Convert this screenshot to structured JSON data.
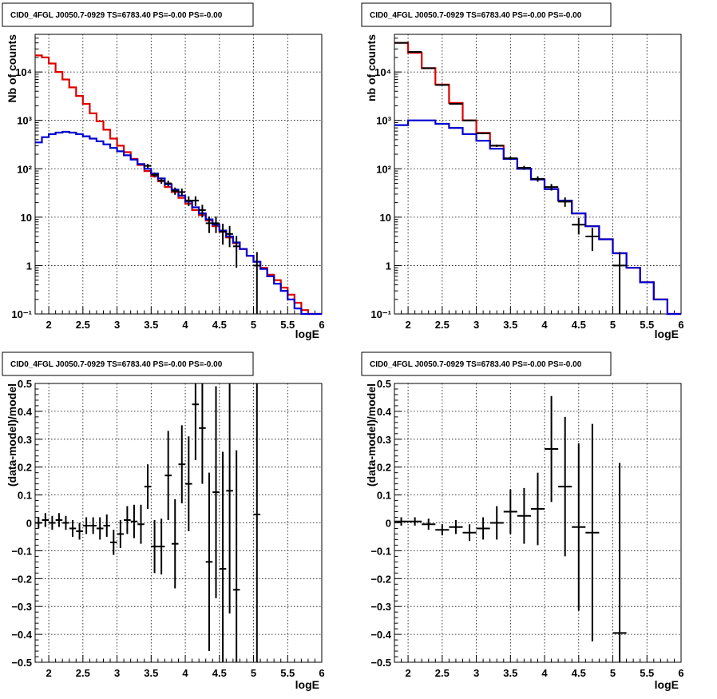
{
  "colors": {
    "model_total": "#e00000",
    "model_bkg": "#0000d0",
    "data": "#000000"
  },
  "chart_data": [
    {
      "type": "line",
      "title": "CID0_4FGL J0050.7-0929 TS=6783.40 PS=-0.00 PS=-0.00",
      "xlabel": "logE",
      "ylabel": "Nb of counts",
      "xlim": [
        1.8,
        6.0
      ],
      "ylim": [
        0.1,
        60000
      ],
      "log_y": true,
      "grid": true,
      "xticks": [
        "2",
        "2.5",
        "3",
        "3.5",
        "4",
        "4.5",
        "5",
        "5.5",
        "6"
      ],
      "yticks": [
        "10⁻¹",
        "1",
        "10",
        "10²",
        "10³",
        "10⁴"
      ],
      "bin_edges": [
        1.8,
        1.9,
        2.0,
        2.1,
        2.2,
        2.3,
        2.4,
        2.5,
        2.6,
        2.7,
        2.8,
        2.9,
        3.0,
        3.1,
        3.2,
        3.3,
        3.4,
        3.5,
        3.6,
        3.7,
        3.8,
        3.9,
        4.0,
        4.1,
        4.2,
        4.3,
        4.4,
        4.5,
        4.6,
        4.7,
        4.8,
        4.9,
        5.0,
        5.1,
        5.2,
        5.3,
        5.4,
        5.5,
        5.6,
        5.7,
        5.8,
        5.9,
        6.0
      ],
      "series": [
        {
          "role": "model_total",
          "values": [
            22000,
            20000,
            15000,
            10000,
            7000,
            4800,
            3200,
            2200,
            1400,
            960,
            640,
            420,
            300,
            220,
            160,
            120,
            90,
            70,
            55,
            42,
            33,
            25,
            19,
            14,
            11,
            8.5,
            6.5,
            5,
            3.8,
            2.9,
            2.2,
            1.6,
            1.2,
            0.9,
            0.65,
            0.5,
            0.35,
            0.25,
            0.17,
            0.12,
            0.1,
            0.1
          ]
        },
        {
          "role": "model_bkg",
          "values": [
            350,
            450,
            520,
            560,
            580,
            560,
            520,
            470,
            420,
            370,
            320,
            270,
            230,
            190,
            155,
            125,
            100,
            80,
            63,
            48,
            37,
            28,
            21,
            16,
            12,
            9,
            7,
            5.3,
            4,
            3,
            2.2,
            1.6,
            1.2,
            0.85,
            0.6,
            0.42,
            0.3,
            0.2,
            0.13,
            0.1,
            0.1,
            0.1
          ]
        }
      ],
      "points": [
        {
          "x": 3.45,
          "y": 115,
          "yerr": 11
        },
        {
          "x": 3.55,
          "y": 75,
          "yerr": 9
        },
        {
          "x": 3.65,
          "y": 57,
          "yerr": 8
        },
        {
          "x": 3.75,
          "y": 50,
          "yerr": 7
        },
        {
          "x": 3.85,
          "y": 35,
          "yerr": 6
        },
        {
          "x": 3.95,
          "y": 33,
          "yerr": 6
        },
        {
          "x": 4.05,
          "y": 22,
          "yerr": 5
        },
        {
          "x": 4.15,
          "y": 22,
          "yerr": 5
        },
        {
          "x": 4.25,
          "y": 14,
          "yerr": 4
        },
        {
          "x": 4.35,
          "y": 7.5,
          "yerr": 2.8
        },
        {
          "x": 4.45,
          "y": 7.5,
          "yerr": 2.8
        },
        {
          "x": 4.55,
          "y": 5,
          "yerr": 2.3
        },
        {
          "x": 4.65,
          "y": 4.5,
          "yerr": 2.1
        },
        {
          "x": 4.75,
          "y": 2.5,
          "yerr": 1.6
        },
        {
          "x": 5.05,
          "y": 1,
          "yerr": 0.9
        }
      ]
    },
    {
      "type": "line",
      "title": "CID0_4FGL J0050.7-0929 TS=6783.40 PS=-0.00 PS=-0.00",
      "xlabel": "logE",
      "ylabel": "nb of counts",
      "xlim": [
        1.8,
        6.0
      ],
      "ylim": [
        0.1,
        60000
      ],
      "log_y": true,
      "grid": true,
      "xticks": [
        "2",
        "2.5",
        "3",
        "3.5",
        "4",
        "4.5",
        "5",
        "5.5",
        "6"
      ],
      "yticks": [
        "10⁻¹",
        "1",
        "10",
        "10²",
        "10³",
        "10⁴"
      ],
      "bin_edges": [
        1.8,
        2.0,
        2.2,
        2.4,
        2.6,
        2.8,
        3.0,
        3.2,
        3.4,
        3.6,
        3.8,
        4.0,
        4.2,
        4.4,
        4.6,
        4.8,
        5.0,
        5.2,
        5.4,
        5.6,
        5.8,
        6.0
      ],
      "series": [
        {
          "role": "model_total",
          "values": [
            40000,
            25000,
            12000,
            5500,
            2300,
            1000,
            550,
            300,
            160,
            100,
            60,
            38,
            22,
            12,
            6.5,
            3.5,
            1.8,
            0.9,
            0.45,
            0.2,
            0.1
          ]
        },
        {
          "role": "model_bkg",
          "values": [
            800,
            1000,
            1000,
            850,
            700,
            520,
            380,
            260,
            160,
            100,
            60,
            38,
            22,
            12,
            6.5,
            3.5,
            1.8,
            0.9,
            0.45,
            0.2,
            0.1
          ]
        }
      ],
      "points": [
        {
          "x": 1.9,
          "y": 40000,
          "yerr": 200
        },
        {
          "x": 2.1,
          "y": 26000,
          "yerr": 160
        },
        {
          "x": 2.3,
          "y": 12000,
          "yerr": 110
        },
        {
          "x": 2.5,
          "y": 5400,
          "yerr": 73
        },
        {
          "x": 2.7,
          "y": 2200,
          "yerr": 47
        },
        {
          "x": 2.9,
          "y": 1000,
          "yerr": 32
        },
        {
          "x": 3.1,
          "y": 540,
          "yerr": 23
        },
        {
          "x": 3.3,
          "y": 300,
          "yerr": 17
        },
        {
          "x": 3.5,
          "y": 165,
          "yerr": 13
        },
        {
          "x": 3.7,
          "y": 105,
          "yerr": 10
        },
        {
          "x": 3.9,
          "y": 62,
          "yerr": 8
        },
        {
          "x": 4.1,
          "y": 42,
          "yerr": 6.5
        },
        {
          "x": 4.3,
          "y": 21,
          "yerr": 4.6
        },
        {
          "x": 4.5,
          "y": 7,
          "yerr": 2.6
        },
        {
          "x": 4.7,
          "y": 4,
          "yerr": 2
        },
        {
          "x": 5.1,
          "y": 1,
          "yerr": 0.9
        }
      ]
    },
    {
      "type": "scatter",
      "title": "CID0_4FGL J0050.7-0929 TS=6783.40 PS=-0.00 PS=-0.00",
      "xlabel": "logE",
      "ylabel": "(data-model)/model",
      "xlim": [
        1.8,
        6.0
      ],
      "ylim": [
        -0.5,
        0.5
      ],
      "grid": true,
      "xticks": [
        "2",
        "2.5",
        "3",
        "3.5",
        "4",
        "4.5",
        "5",
        "5.5",
        "6"
      ],
      "yticks": [
        "−0.5",
        "−0.4",
        "−0.3",
        "−0.2",
        "−0.1",
        "0",
        "0.1",
        "0.2",
        "0.3",
        "0.4",
        "0.5"
      ],
      "xhalfwidth": 0.05,
      "points": [
        {
          "x": 1.85,
          "y": 0.0,
          "yerr": 0.02
        },
        {
          "x": 1.95,
          "y": 0.01,
          "yerr": 0.025
        },
        {
          "x": 2.05,
          "y": 0.0,
          "yerr": 0.025
        },
        {
          "x": 2.15,
          "y": 0.01,
          "yerr": 0.025
        },
        {
          "x": 2.25,
          "y": 0.0,
          "yerr": 0.025
        },
        {
          "x": 2.35,
          "y": -0.02,
          "yerr": 0.03
        },
        {
          "x": 2.45,
          "y": -0.03,
          "yerr": 0.03
        },
        {
          "x": 2.55,
          "y": -0.01,
          "yerr": 0.03
        },
        {
          "x": 2.65,
          "y": -0.01,
          "yerr": 0.03
        },
        {
          "x": 2.75,
          "y": -0.02,
          "yerr": 0.04
        },
        {
          "x": 2.85,
          "y": -0.01,
          "yerr": 0.04
        },
        {
          "x": 2.95,
          "y": -0.07,
          "yerr": 0.045
        },
        {
          "x": 3.05,
          "y": -0.04,
          "yerr": 0.05
        },
        {
          "x": 3.15,
          "y": 0.01,
          "yerr": 0.05
        },
        {
          "x": 3.25,
          "y": 0.005,
          "yerr": 0.06
        },
        {
          "x": 3.35,
          "y": -0.005,
          "yerr": 0.07
        },
        {
          "x": 3.45,
          "y": 0.13,
          "yerr": 0.08
        },
        {
          "x": 3.55,
          "y": -0.085,
          "yerr": 0.095
        },
        {
          "x": 3.65,
          "y": -0.085,
          "yerr": 0.1
        },
        {
          "x": 3.75,
          "y": 0.17,
          "yerr": 0.16
        },
        {
          "x": 3.85,
          "y": -0.075,
          "yerr": 0.16
        },
        {
          "x": 3.95,
          "y": 0.21,
          "yerr": 0.14
        },
        {
          "x": 4.05,
          "y": 0.14,
          "yerr": 0.17
        },
        {
          "x": 4.15,
          "y": 0.425,
          "yerr": 0.2
        },
        {
          "x": 4.25,
          "y": 0.34,
          "yerr": 0.2
        },
        {
          "x": 4.35,
          "y": -0.14,
          "yerr": 0.32
        },
        {
          "x": 4.45,
          "y": 0.11,
          "yerr": 0.38
        },
        {
          "x": 4.55,
          "y": -0.165,
          "yerr": 0.42
        },
        {
          "x": 4.65,
          "y": 0.115,
          "yerr": 0.44
        },
        {
          "x": 4.75,
          "y": -0.24,
          "yerr": 0.5
        },
        {
          "x": 5.05,
          "y": 0.03,
          "yerr": 1.0
        }
      ]
    },
    {
      "type": "scatter",
      "title": "CID0_4FGL J0050.7-0929 TS=6783.40 PS=-0.00 PS=-0.00",
      "xlabel": "logE",
      "ylabel": "(data-model)/model",
      "xlim": [
        1.8,
        6.0
      ],
      "ylim": [
        -0.5,
        0.5
      ],
      "grid": true,
      "xticks": [
        "2",
        "2.5",
        "3",
        "3.5",
        "4",
        "4.5",
        "5",
        "5.5",
        "6"
      ],
      "yticks": [
        "−0.5",
        "−0.4",
        "−0.3",
        "−0.2",
        "−0.1",
        "0",
        "0.1",
        "0.2",
        "0.3",
        "0.4",
        "0.5"
      ],
      "xhalfwidth": 0.1,
      "points": [
        {
          "x": 1.9,
          "y": 0.005,
          "yerr": 0.015
        },
        {
          "x": 2.1,
          "y": 0.005,
          "yerr": 0.015
        },
        {
          "x": 2.3,
          "y": -0.005,
          "yerr": 0.02
        },
        {
          "x": 2.5,
          "y": -0.025,
          "yerr": 0.02
        },
        {
          "x": 2.7,
          "y": -0.015,
          "yerr": 0.025
        },
        {
          "x": 2.9,
          "y": -0.035,
          "yerr": 0.03
        },
        {
          "x": 3.1,
          "y": -0.02,
          "yerr": 0.04
        },
        {
          "x": 3.3,
          "y": 0.0,
          "yerr": 0.06
        },
        {
          "x": 3.5,
          "y": 0.04,
          "yerr": 0.08
        },
        {
          "x": 3.7,
          "y": 0.025,
          "yerr": 0.1
        },
        {
          "x": 3.9,
          "y": 0.05,
          "yerr": 0.13
        },
        {
          "x": 4.1,
          "y": 0.265,
          "yerr": 0.19
        },
        {
          "x": 4.3,
          "y": 0.13,
          "yerr": 0.25
        },
        {
          "x": 4.5,
          "y": -0.015,
          "yerr": 0.3
        },
        {
          "x": 4.7,
          "y": -0.035,
          "yerr": 0.39
        },
        {
          "x": 5.1,
          "y": -0.395,
          "yerr": 0.61
        }
      ]
    }
  ]
}
